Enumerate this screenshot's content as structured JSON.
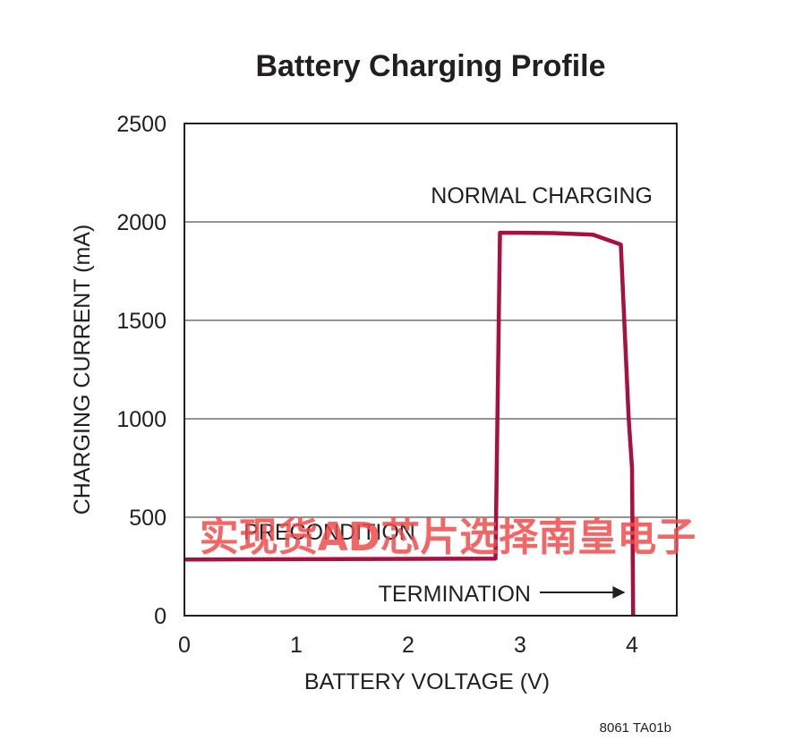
{
  "colors": {
    "curve": "#a8103f",
    "axis": "#231f20",
    "grid": "#555555",
    "watermark": "#f24a4a"
  },
  "chart_data": {
    "type": "line",
    "title": "Battery Charging Profile",
    "xlabel": "BATTERY VOLTAGE (V)",
    "ylabel": "CHARGING CURRENT (mA)",
    "xlim": [
      0,
      4.4
    ],
    "ylim": [
      0,
      2500
    ],
    "xticks": [
      0,
      1,
      2,
      3,
      4
    ],
    "yticks": [
      0,
      500,
      1000,
      1500,
      2000,
      2500
    ],
    "grid": "horizontal",
    "series": [
      {
        "x": [
          0,
          2.78,
          2.82,
          3.0,
          3.3,
          3.65,
          3.9,
          3.97,
          4.0,
          4.01
        ],
        "y": [
          285,
          290,
          1945,
          1945,
          1943,
          1935,
          1885,
          1000,
          750,
          0
        ]
      }
    ],
    "annotations": {
      "normal": "NORMAL CHARGING",
      "precondition": "PRECONDITION",
      "termination": "TERMINATION"
    },
    "figure_code": "8061 TA01b"
  },
  "watermark": "实现货AD芯片选择南皇电子"
}
